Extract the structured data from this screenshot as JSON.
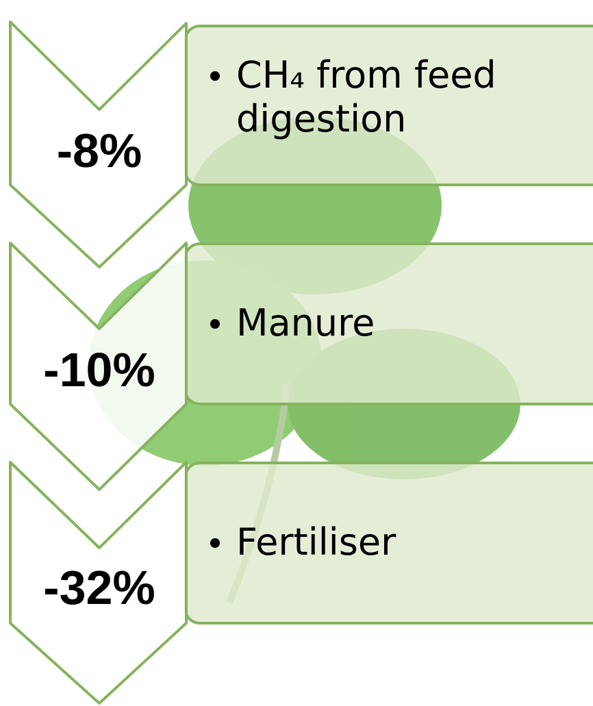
{
  "items": [
    {
      "value": "-8%",
      "text": "CH₄ from feed digestion"
    },
    {
      "value": "-10%",
      "text": "Manure"
    },
    {
      "value": "-32%",
      "text": "Fertiliser"
    }
  ]
}
